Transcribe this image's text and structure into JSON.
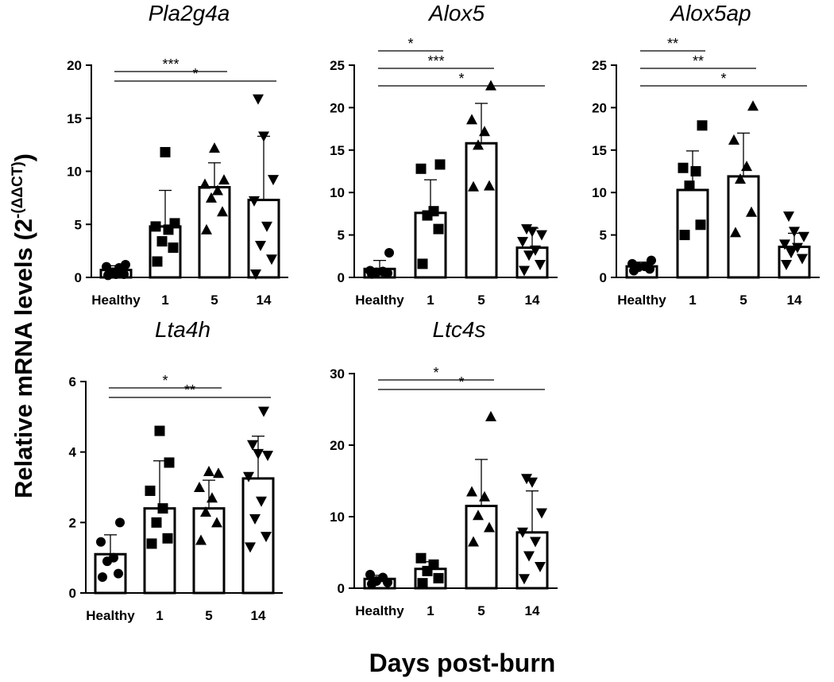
{
  "figure": {
    "ylabel_main": "Relative mRNA levels (2",
    "ylabel_sup": "-(ΔΔCT)",
    "ylabel_close": ")",
    "xlabel": "Days post-burn"
  },
  "chart_data": [
    {
      "type": "bar",
      "title": "Pla2g4a",
      "categories": [
        "Healthy",
        "1",
        "5",
        "14"
      ],
      "ylim": [
        0,
        20
      ],
      "yticks": [
        0,
        5,
        10,
        15,
        20
      ],
      "grid": false,
      "means": [
        0.7,
        4.8,
        8.5,
        7.3
      ],
      "errors": [
        0.4,
        3.4,
        2.3,
        6.0
      ],
      "markers": [
        "circle",
        "square",
        "triangle-up",
        "triangle-down"
      ],
      "points": [
        [
          0.2,
          0.3,
          0.5,
          0.9,
          1.0,
          1.2,
          0.3
        ],
        [
          1.5,
          2.8,
          3.4,
          4.5,
          4.8,
          5.1,
          11.8
        ],
        [
          4.5,
          6.2,
          7.5,
          8.2,
          8.8,
          9.2,
          12.2
        ],
        [
          0.3,
          1.7,
          3.0,
          4.8,
          7.2,
          9.2,
          13.3,
          16.8
        ]
      ],
      "significance": [
        {
          "from": "Healthy",
          "to": "5",
          "label": "***"
        },
        {
          "from": "Healthy",
          "to": "14",
          "label": "*"
        }
      ]
    },
    {
      "type": "bar",
      "title": "Alox5",
      "categories": [
        "Healthy",
        "1",
        "5",
        "14"
      ],
      "ylim": [
        0,
        25
      ],
      "yticks": [
        0,
        5,
        10,
        15,
        20,
        25
      ],
      "grid": false,
      "means": [
        1.0,
        7.6,
        15.8,
        3.5
      ],
      "errors": [
        1.0,
        3.9,
        4.7,
        2.3
      ],
      "markers": [
        "circle",
        "square",
        "triangle-up",
        "triangle-down"
      ],
      "points": [
        [
          0.4,
          0.5,
          0.6,
          0.7,
          0.8,
          2.9
        ],
        [
          1.6,
          5.7,
          7.3,
          7.8,
          12.8,
          13.3
        ],
        [
          10.7,
          10.8,
          15.6,
          17.2,
          18.6,
          22.6
        ],
        [
          0.8,
          1.5,
          2.6,
          3.2,
          4.2,
          5.0,
          5.4,
          5.7
        ]
      ],
      "significance": [
        {
          "from": "Healthy",
          "to": "1",
          "label": "*"
        },
        {
          "from": "Healthy",
          "to": "5",
          "label": "***"
        },
        {
          "from": "Healthy",
          "to": "14",
          "label": "*"
        }
      ]
    },
    {
      "type": "bar",
      "title": "Alox5ap",
      "categories": [
        "Healthy",
        "1",
        "5",
        "14"
      ],
      "ylim": [
        0,
        25
      ],
      "yticks": [
        0,
        5,
        10,
        15,
        20,
        25
      ],
      "grid": false,
      "means": [
        1.3,
        10.3,
        11.9,
        3.6
      ],
      "errors": [
        0.5,
        4.6,
        5.1,
        1.6
      ],
      "markers": [
        "circle",
        "square",
        "triangle-up",
        "triangle-down"
      ],
      "points": [
        [
          0.8,
          1.0,
          1.2,
          1.3,
          1.6,
          2.0
        ],
        [
          5.0,
          6.2,
          10.8,
          12.5,
          12.9,
          17.9
        ],
        [
          5.3,
          7.7,
          11.6,
          13.1,
          16.2,
          20.2
        ],
        [
          1.5,
          2.2,
          2.9,
          3.5,
          3.9,
          4.8,
          5.4,
          7.2
        ]
      ],
      "significance": [
        {
          "from": "Healthy",
          "to": "1",
          "label": "**"
        },
        {
          "from": "Healthy",
          "to": "5",
          "label": "**"
        },
        {
          "from": "Healthy",
          "to": "14",
          "label": "*"
        }
      ]
    },
    {
      "type": "bar",
      "title": "Lta4h",
      "categories": [
        "Healthy",
        "1",
        "5",
        "14"
      ],
      "ylim": [
        0,
        6
      ],
      "yticks": [
        0,
        2,
        4,
        6
      ],
      "grid": false,
      "means": [
        1.1,
        2.4,
        2.4,
        3.25
      ],
      "errors": [
        0.55,
        1.35,
        0.8,
        1.2
      ],
      "markers": [
        "circle",
        "square",
        "triangle-up",
        "triangle-down"
      ],
      "points": [
        [
          0.45,
          0.55,
          0.9,
          1.0,
          1.45,
          2.0
        ],
        [
          1.4,
          1.55,
          2.0,
          2.4,
          2.9,
          3.7,
          4.6
        ],
        [
          1.5,
          2.0,
          2.3,
          2.7,
          3.0,
          3.4,
          3.45
        ],
        [
          1.3,
          1.6,
          2.1,
          2.6,
          3.3,
          3.9,
          3.95,
          4.2,
          5.15
        ]
      ],
      "significance": [
        {
          "from": "Healthy",
          "to": "5",
          "label": "*"
        },
        {
          "from": "Healthy",
          "to": "14",
          "label": "**"
        }
      ]
    },
    {
      "type": "bar",
      "title": "Ltc4s",
      "categories": [
        "Healthy",
        "1",
        "5",
        "14"
      ],
      "ylim": [
        0,
        30
      ],
      "yticks": [
        0,
        10,
        20,
        30
      ],
      "grid": false,
      "means": [
        1.3,
        2.7,
        11.5,
        7.8
      ],
      "errors": [
        0.5,
        1.0,
        6.5,
        5.8
      ],
      "markers": [
        "circle",
        "square",
        "triangle-up",
        "triangle-down"
      ],
      "points": [
        [
          0.6,
          0.8,
          1.0,
          1.5,
          1.9
        ],
        [
          0.7,
          1.4,
          2.4,
          3.3,
          4.2
        ],
        [
          6.5,
          8.5,
          10.2,
          12.8,
          13.5,
          24.0
        ],
        [
          1.3,
          3.0,
          4.5,
          6.5,
          7.8,
          10.5,
          14.8,
          15.3
        ]
      ],
      "significance": [
        {
          "from": "Healthy",
          "to": "5",
          "label": "*"
        },
        {
          "from": "Healthy",
          "to": "14",
          "label": "*"
        }
      ]
    }
  ]
}
